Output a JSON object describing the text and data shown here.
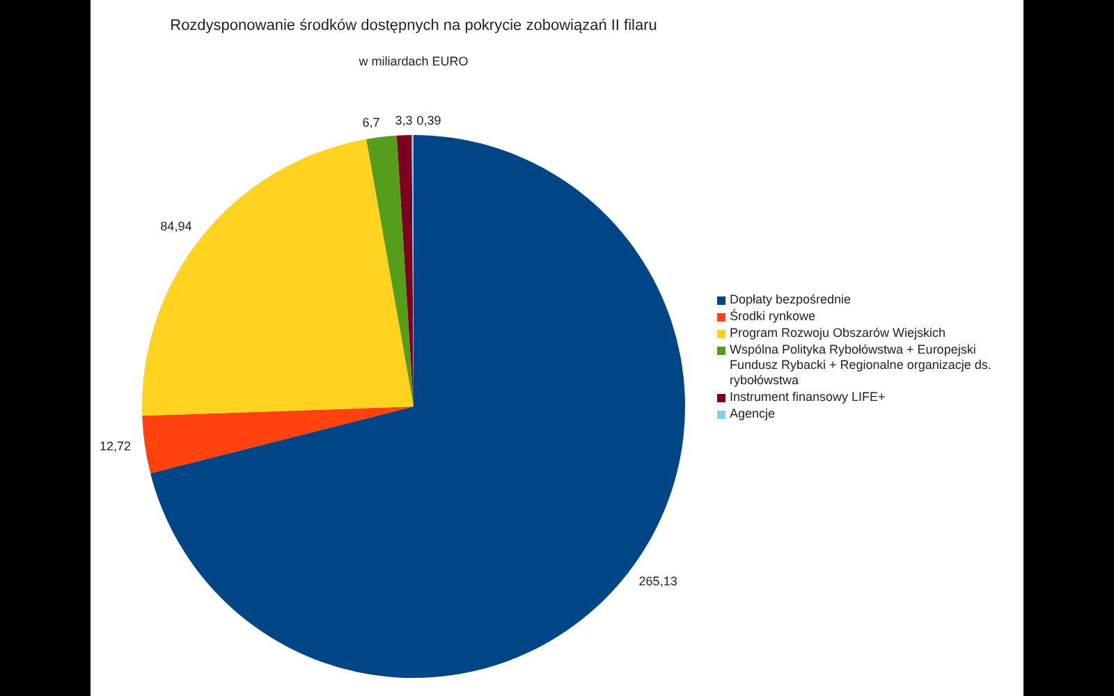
{
  "chart_data": {
    "type": "pie",
    "title": "Rozdysponowanie środków dostępnych na pokrycie zobowiązań II filaru",
    "subtitle": "w miliardach EURO",
    "categories": [
      "Dopłaty bezpośrednie",
      "Środki rynkowe",
      "Program Rozwoju Obszarów Wiejskich",
      "Wspólna Polityka Rybołówstwa + Europejski Fundusz Rybacki + Regionalne organizacje ds. rybołówstwa",
      "Instrument finansowy LIFE+",
      "Agencje"
    ],
    "values": [
      265.13,
      12.72,
      84.94,
      6.7,
      3.3,
      0.39
    ],
    "value_labels": [
      "265,13",
      "12,72",
      "84,94",
      "6,7",
      "3,3",
      "0,39"
    ],
    "colors": [
      "#004586",
      "#ff420e",
      "#ffd320",
      "#579d1c",
      "#7e0021",
      "#83caff"
    ],
    "legend": "right"
  }
}
